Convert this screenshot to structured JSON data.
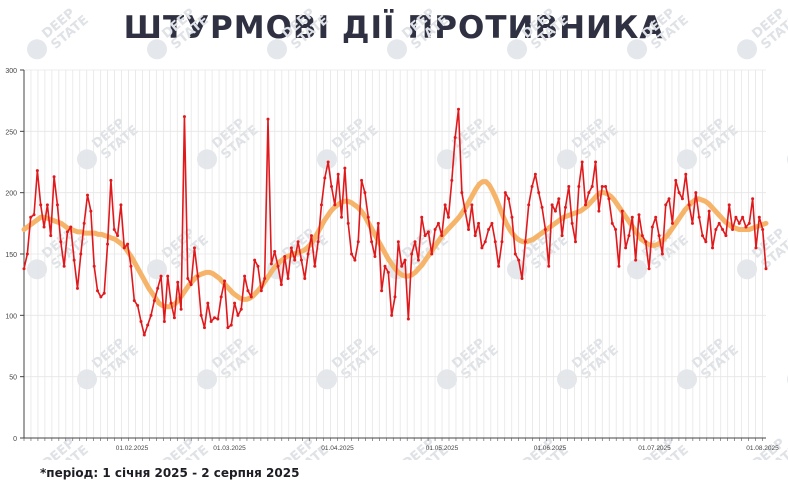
{
  "title": "ШТУРМОВІ ДІЇ ПРОТИВНИКА",
  "footnote": "*період: 1 січня 2025 - 2 серпня 2025",
  "watermark_text": "DEEP STATE",
  "colors": {
    "daily_line": "#e0191d",
    "trend_line": "#f5b46a",
    "grid": "#e6e6e6",
    "title": "#2f3142"
  },
  "chart_data": {
    "type": "line",
    "title": "ШТУРМОВІ ДІЇ ПРОТИВНИКА",
    "xlabel": "",
    "ylabel": "",
    "x_start": "2025-01-01",
    "x_end": "2025-08-02",
    "ylim": [
      0,
      300
    ],
    "y_ticks": [
      0,
      50,
      100,
      150,
      200,
      250,
      300
    ],
    "x_ticks": [
      {
        "date": "2025-02-01",
        "label": "01.02.2025"
      },
      {
        "date": "2025-03-01",
        "label": "01.03.2025"
      },
      {
        "date": "2025-04-01",
        "label": "01.04.2025"
      },
      {
        "date": "2025-05-01",
        "label": "01.05.2025"
      },
      {
        "date": "2025-06-01",
        "label": "01.06.2025"
      },
      {
        "date": "2025-07-01",
        "label": "01.07.2025"
      },
      {
        "date": "2025-08-01",
        "label": "01.08.2025"
      }
    ],
    "grid": true,
    "series": [
      {
        "name": "",
        "style": "daily",
        "values": [
          138,
          150,
          180,
          182,
          218,
          190,
          172,
          190,
          165,
          213,
          190,
          160,
          140,
          168,
          172,
          145,
          122,
          150,
          175,
          198,
          185,
          140,
          120,
          115,
          118,
          158,
          210,
          170,
          165,
          190,
          155,
          158,
          140,
          112,
          108,
          95,
          84,
          92,
          100,
          112,
          122,
          132,
          95,
          132,
          110,
          98,
          127,
          105,
          262,
          130,
          125,
          155,
          132,
          100,
          90,
          110,
          95,
          98,
          97,
          115,
          128,
          90,
          92,
          110,
          100,
          105,
          132,
          120,
          115,
          145,
          140,
          120,
          130,
          260,
          142,
          152,
          140,
          125,
          148,
          130,
          155,
          145,
          160,
          145,
          130,
          150,
          165,
          140,
          160,
          190,
          212,
          225,
          205,
          190,
          215,
          180,
          220,
          175,
          150,
          145,
          160,
          210,
          200,
          180,
          160,
          148,
          175,
          120,
          140,
          135,
          100,
          115,
          160,
          140,
          145,
          97,
          150,
          160,
          145,
          180,
          165,
          168,
          150,
          170,
          175,
          165,
          190,
          180,
          210,
          245,
          268,
          200,
          185,
          170,
          190,
          165,
          175,
          155,
          160,
          170,
          175,
          160,
          140,
          160,
          200,
          195,
          180,
          150,
          145,
          130,
          160,
          190,
          205,
          215,
          200,
          188,
          170,
          140,
          190,
          185,
          195,
          165,
          188,
          205,
          175,
          160,
          205,
          225,
          190,
          200,
          205,
          225,
          185,
          205,
          205,
          195,
          175,
          170,
          140,
          185,
          155,
          165,
          180,
          145,
          182,
          165,
          160,
          138,
          172,
          180,
          165,
          150,
          190,
          195,
          175,
          210,
          200,
          195,
          215,
          190,
          175,
          200,
          180,
          165,
          160,
          185,
          155,
          170,
          175,
          170,
          165,
          190,
          170,
          180,
          175,
          180,
          172,
          175,
          195,
          155,
          180,
          170,
          138
        ]
      },
      {
        "name": "",
        "style": "trend",
        "values": [
          170,
          172,
          174,
          176,
          178,
          180,
          180,
          179,
          178,
          177,
          176,
          175,
          173,
          171,
          170,
          169,
          168,
          168,
          167,
          167,
          167,
          167,
          166,
          166,
          165,
          164,
          163,
          162,
          160,
          158,
          155,
          151,
          147,
          142,
          137,
          132,
          127,
          122,
          118,
          114,
          110,
          108,
          107,
          107,
          108,
          110,
          113,
          117,
          121,
          125,
          128,
          131,
          133,
          134,
          135,
          135,
          134,
          132,
          130,
          127,
          124,
          121,
          118,
          116,
          114,
          113,
          113,
          114,
          116,
          119,
          122,
          126,
          130,
          134,
          138,
          141,
          144,
          146,
          148,
          149,
          150,
          151,
          152,
          153,
          155,
          158,
          162,
          167,
          172,
          177,
          181,
          185,
          188,
          190,
          192,
          193,
          193,
          192,
          190,
          188,
          185,
          181,
          176,
          171,
          166,
          161,
          156,
          151,
          146,
          142,
          138,
          135,
          133,
          132,
          132,
          133,
          135,
          138,
          141,
          145,
          149,
          153,
          157,
          161,
          165,
          168,
          171,
          174,
          177,
          180,
          184,
          188,
          193,
          198,
          203,
          207,
          209,
          209,
          206,
          201,
          195,
          188,
          181,
          175,
          170,
          166,
          163,
          161,
          160,
          160,
          161,
          162,
          164,
          166,
          168,
          170,
          172,
          174,
          176,
          178,
          180,
          181,
          182,
          183,
          184,
          185,
          187,
          189,
          192,
          195,
          198,
          200,
          200,
          199,
          197,
          194,
          190,
          186,
          182,
          178,
          174,
          170,
          166,
          162,
          160,
          158,
          157,
          157,
          158,
          160,
          163,
          166,
          170,
          174,
          178,
          182,
          186,
          189,
          192,
          194,
          195,
          194,
          193,
          191,
          188,
          185,
          182,
          179,
          176,
          174,
          172,
          171,
          170,
          170,
          170,
          170,
          171,
          172,
          173,
          174,
          175
        ]
      }
    ]
  }
}
